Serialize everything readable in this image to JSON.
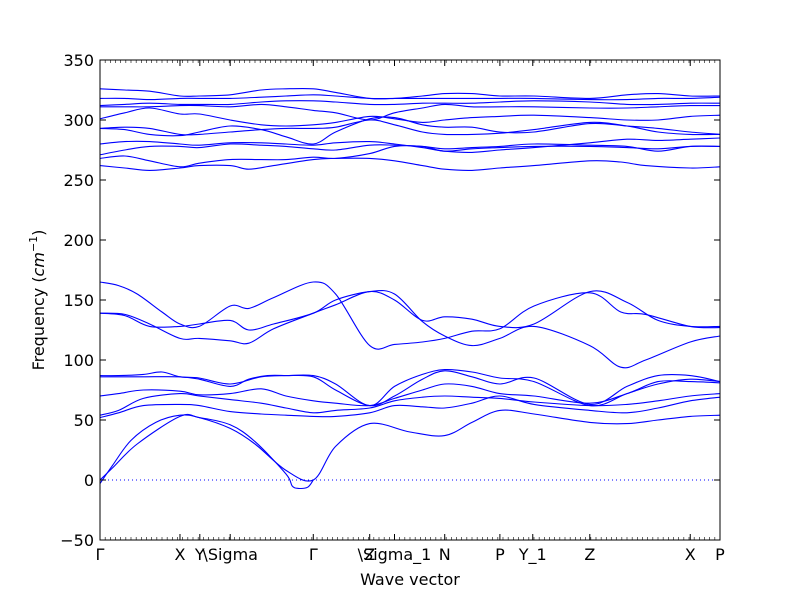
{
  "chart_data": {
    "type": "line",
    "title": "",
    "xlabel": "Wave vector",
    "ylabel": "Frequency",
    "ylabel_unit": "cm",
    "ylabel_unit_power": "−1",
    "ylim": [
      -50,
      350
    ],
    "yticks": [
      -50,
      0,
      50,
      100,
      150,
      200,
      250,
      300,
      350
    ],
    "xlim": [
      0,
      1
    ],
    "high_symmetry_points": [
      {
        "label": "Γ",
        "x": 0.0
      },
      {
        "label": "X",
        "x": 0.129
      },
      {
        "label": "Y",
        "x": 0.161
      },
      {
        "label": "\\Sigma",
        "x": 0.21
      },
      {
        "label": "Γ",
        "x": 0.344
      },
      {
        "label": "Z",
        "x": 0.435
      },
      {
        "label": "\\Sigma_1",
        "x": 0.475
      },
      {
        "label": "N",
        "x": 0.556
      },
      {
        "label": "P",
        "x": 0.645
      },
      {
        "label": "Y_1",
        "x": 0.698
      },
      {
        "label": "Z",
        "x": 0.79
      },
      {
        "label": "X",
        "x": 0.952
      },
      {
        "label": "P",
        "x": 1.0
      }
    ],
    "zero_line": {
      "y": 0,
      "style": "dotted"
    },
    "series_color": "#0000ff",
    "series": [
      {
        "x": [
          0.0,
          0.02,
          0.05,
          0.09,
          0.129,
          0.16,
          0.21,
          0.25,
          0.3,
          0.344,
          0.38,
          0.435,
          0.5,
          0.556,
          0.6,
          0.645,
          0.7,
          0.79,
          0.85,
          0.9,
          0.952,
          1.0
        ],
        "y": [
          -3,
          12,
          33,
          48,
          54,
          52,
          43,
          30,
          8,
          0,
          28,
          47,
          40,
          37,
          48,
          58,
          55,
          48,
          47,
          50,
          53,
          54
        ]
      },
      {
        "x": [
          0.0,
          0.02,
          0.06,
          0.129,
          0.16,
          0.21,
          0.25,
          0.3,
          0.31,
          0.32,
          0.335,
          0.344
        ],
        "y": [
          0,
          10,
          30,
          53,
          52,
          46,
          32,
          5,
          -5,
          -7,
          -6,
          0
        ]
      },
      {
        "x": [
          0.0,
          0.03,
          0.07,
          0.129,
          0.16,
          0.21,
          0.26,
          0.3,
          0.344,
          0.38,
          0.435,
          0.475,
          0.52,
          0.556,
          0.6,
          0.645,
          0.7,
          0.79,
          0.85,
          0.9,
          0.952,
          1.0
        ],
        "y": [
          52,
          56,
          62,
          63,
          62,
          57,
          55,
          54,
          53,
          53,
          56,
          62,
          61,
          60,
          64,
          70,
          63,
          58,
          56,
          60,
          66,
          69
        ]
      },
      {
        "x": [
          0.0,
          0.03,
          0.07,
          0.129,
          0.16,
          0.21,
          0.26,
          0.3,
          0.344,
          0.38,
          0.435,
          0.475,
          0.52,
          0.556,
          0.6,
          0.645,
          0.7,
          0.79,
          0.85,
          0.9,
          0.952,
          1.0
        ],
        "y": [
          54,
          58,
          68,
          72,
          70,
          67,
          64,
          60,
          56,
          58,
          60,
          66,
          69,
          70,
          69,
          68,
          65,
          62,
          63,
          66,
          70,
          72
        ]
      },
      {
        "x": [
          0.0,
          0.03,
          0.07,
          0.129,
          0.16,
          0.21,
          0.26,
          0.3,
          0.344,
          0.38,
          0.435,
          0.475,
          0.52,
          0.556,
          0.6,
          0.645,
          0.7,
          0.79,
          0.85,
          0.9,
          0.952,
          1.0
        ],
        "y": [
          70,
          72,
          75,
          74,
          71,
          72,
          76,
          70,
          66,
          64,
          62,
          68,
          75,
          80,
          78,
          72,
          70,
          64,
          72,
          82,
          82,
          81
        ]
      },
      {
        "x": [
          0.0,
          0.03,
          0.07,
          0.129,
          0.16,
          0.21,
          0.24,
          0.27,
          0.3,
          0.344,
          0.38,
          0.435,
          0.475,
          0.52,
          0.556,
          0.6,
          0.645,
          0.7,
          0.79,
          0.85,
          0.9,
          0.952,
          1.0
        ],
        "y": [
          86,
          86,
          86,
          86,
          84,
          78,
          84,
          87,
          87,
          86,
          75,
          62,
          70,
          84,
          91,
          86,
          80,
          85,
          63,
          78,
          87,
          87,
          82
        ]
      },
      {
        "x": [
          0.0,
          0.03,
          0.07,
          0.1,
          0.129,
          0.16,
          0.21,
          0.26,
          0.3,
          0.344,
          0.38,
          0.435,
          0.475,
          0.52,
          0.556,
          0.6,
          0.645,
          0.7,
          0.79,
          0.85,
          0.9,
          0.952,
          1.0
        ],
        "y": [
          87,
          87,
          88,
          90,
          86,
          85,
          80,
          86,
          87,
          87,
          80,
          62,
          78,
          88,
          92,
          90,
          85,
          82,
          62,
          72,
          80,
          84,
          82
        ]
      },
      {
        "x": [
          0.0,
          0.04,
          0.08,
          0.129,
          0.16,
          0.21,
          0.24,
          0.28,
          0.344,
          0.38,
          0.435,
          0.475,
          0.52,
          0.556,
          0.6,
          0.645,
          0.7,
          0.79,
          0.85,
          0.9,
          0.952,
          1.0
        ],
        "y": [
          139,
          138,
          130,
          118,
          118,
          116,
          114,
          126,
          139,
          146,
          157,
          150,
          133,
          136,
          134,
          128,
          130,
          157,
          148,
          133,
          128,
          128
        ]
      },
      {
        "x": [
          0.0,
          0.03,
          0.06,
          0.1,
          0.129,
          0.16,
          0.21,
          0.24,
          0.28,
          0.344,
          0.38,
          0.435,
          0.475,
          0.52,
          0.556,
          0.6,
          0.645,
          0.7,
          0.79,
          0.84,
          0.88,
          0.952,
          1.0
        ],
        "y": [
          165,
          162,
          155,
          140,
          130,
          128,
          145,
          143,
          152,
          165,
          155,
          112,
          113,
          115,
          118,
          124,
          126,
          145,
          156,
          140,
          138,
          128,
          127
        ]
      },
      {
        "x": [
          0.0,
          0.04,
          0.08,
          0.129,
          0.16,
          0.21,
          0.24,
          0.28,
          0.344,
          0.38,
          0.435,
          0.475,
          0.52,
          0.556,
          0.6,
          0.645,
          0.7,
          0.79,
          0.84,
          0.88,
          0.952,
          1.0
        ],
        "y": [
          139,
          137,
          128,
          128,
          130,
          133,
          125,
          130,
          139,
          150,
          157,
          155,
          132,
          120,
          112,
          118,
          128,
          112,
          94,
          100,
          115,
          120
        ]
      },
      {
        "x": [
          0.0,
          0.04,
          0.08,
          0.129,
          0.16,
          0.21,
          0.24,
          0.28,
          0.344,
          0.38,
          0.435,
          0.475,
          0.52,
          0.556,
          0.6,
          0.645,
          0.7,
          0.79,
          0.84,
          0.88,
          0.952,
          1.0
        ],
        "y": [
          262,
          260,
          258,
          260,
          262,
          262,
          259,
          262,
          267,
          268,
          268,
          266,
          262,
          259,
          258,
          260,
          262,
          266,
          265,
          262,
          260,
          261
        ]
      },
      {
        "x": [
          0.0,
          0.04,
          0.08,
          0.129,
          0.16,
          0.21,
          0.26,
          0.3,
          0.344,
          0.38,
          0.435,
          0.475,
          0.52,
          0.556,
          0.6,
          0.645,
          0.7,
          0.79,
          0.85,
          0.9,
          0.952,
          1.0
        ],
        "y": [
          268,
          270,
          266,
          261,
          264,
          267,
          267,
          267,
          269,
          268,
          272,
          278,
          278,
          274,
          276,
          277,
          278,
          278,
          277,
          276,
          278,
          278
        ]
      },
      {
        "x": [
          0.0,
          0.04,
          0.08,
          0.129,
          0.16,
          0.21,
          0.26,
          0.3,
          0.344,
          0.38,
          0.435,
          0.475,
          0.52,
          0.556,
          0.6,
          0.645,
          0.7,
          0.79,
          0.85,
          0.9,
          0.952,
          1.0
        ],
        "y": [
          271,
          275,
          278,
          278,
          277,
          280,
          279,
          278,
          276,
          275,
          279,
          279,
          278,
          276,
          277,
          278,
          280,
          279,
          278,
          274,
          278,
          278
        ]
      },
      {
        "x": [
          0.0,
          0.04,
          0.08,
          0.129,
          0.16,
          0.21,
          0.26,
          0.3,
          0.344,
          0.38,
          0.435,
          0.475,
          0.52,
          0.556,
          0.6,
          0.645,
          0.7,
          0.79,
          0.85,
          0.9,
          0.952,
          1.0
        ],
        "y": [
          280,
          282,
          282,
          280,
          279,
          281,
          281,
          280,
          279,
          281,
          282,
          280,
          277,
          274,
          273,
          275,
          277,
          281,
          284,
          283,
          284,
          285
        ]
      },
      {
        "x": [
          0.0,
          0.04,
          0.08,
          0.129,
          0.16,
          0.21,
          0.26,
          0.3,
          0.344,
          0.38,
          0.435,
          0.475,
          0.52,
          0.556,
          0.6,
          0.645,
          0.7,
          0.79,
          0.85,
          0.9,
          0.952,
          1.0
        ],
        "y": [
          293,
          292,
          288,
          287,
          290,
          295,
          292,
          286,
          280,
          290,
          301,
          302,
          296,
          294,
          294,
          290,
          290,
          297,
          295,
          293,
          290,
          288
        ]
      },
      {
        "x": [
          0.0,
          0.04,
          0.08,
          0.129,
          0.16,
          0.21,
          0.26,
          0.3,
          0.344,
          0.38,
          0.435,
          0.475,
          0.52,
          0.556,
          0.6,
          0.645,
          0.7,
          0.79,
          0.85,
          0.9,
          0.952,
          1.0
        ],
        "y": [
          293,
          294,
          293,
          288,
          288,
          290,
          292,
          293,
          293,
          294,
          300,
          296,
          290,
          288,
          288,
          289,
          292,
          298,
          295,
          290,
          288,
          288
        ]
      },
      {
        "x": [
          0.0,
          0.04,
          0.08,
          0.129,
          0.16,
          0.21,
          0.26,
          0.3,
          0.344,
          0.38,
          0.435,
          0.475,
          0.52,
          0.556,
          0.6,
          0.645,
          0.7,
          0.79,
          0.85,
          0.9,
          0.952,
          1.0
        ],
        "y": [
          301,
          306,
          310,
          305,
          305,
          300,
          296,
          295,
          296,
          298,
          303,
          301,
          298,
          300,
          302,
          303,
          304,
          302,
          300,
          300,
          303,
          304
        ]
      },
      {
        "x": [
          0.0,
          0.04,
          0.08,
          0.129,
          0.16,
          0.21,
          0.26,
          0.3,
          0.344,
          0.38,
          0.435,
          0.475,
          0.52,
          0.556,
          0.6,
          0.645,
          0.7,
          0.79,
          0.85,
          0.9,
          0.952,
          1.0
        ],
        "y": [
          311,
          311,
          311,
          312,
          312,
          311,
          313,
          311,
          308,
          306,
          300,
          306,
          310,
          313,
          311,
          311,
          311,
          310,
          310,
          311,
          312,
          312
        ]
      },
      {
        "x": [
          0.0,
          0.04,
          0.08,
          0.129,
          0.16,
          0.21,
          0.26,
          0.3,
          0.344,
          0.38,
          0.435,
          0.475,
          0.52,
          0.556,
          0.6,
          0.645,
          0.7,
          0.79,
          0.85,
          0.9,
          0.952,
          1.0
        ],
        "y": [
          312,
          313,
          314,
          313,
          313,
          313,
          315,
          316,
          316,
          315,
          313,
          313,
          314,
          314,
          314,
          315,
          316,
          315,
          313,
          313,
          314,
          314
        ]
      },
      {
        "x": [
          0.0,
          0.04,
          0.08,
          0.129,
          0.16,
          0.21,
          0.26,
          0.3,
          0.344,
          0.38,
          0.435,
          0.475,
          0.52,
          0.556,
          0.6,
          0.645,
          0.7,
          0.79,
          0.85,
          0.9,
          0.952,
          1.0
        ],
        "y": [
          318,
          318,
          317,
          318,
          318,
          318,
          319,
          320,
          321,
          320,
          318,
          318,
          318,
          318,
          318,
          318,
          318,
          317,
          317,
          318,
          318,
          319
        ]
      },
      {
        "x": [
          0.0,
          0.04,
          0.08,
          0.129,
          0.16,
          0.21,
          0.26,
          0.3,
          0.344,
          0.38,
          0.435,
          0.475,
          0.52,
          0.556,
          0.6,
          0.645,
          0.7,
          0.79,
          0.85,
          0.9,
          0.952,
          1.0
        ],
        "y": [
          326,
          325,
          324,
          320,
          320,
          321,
          325,
          326,
          326,
          323,
          318,
          318,
          320,
          322,
          322,
          320,
          320,
          318,
          321,
          322,
          320,
          320
        ]
      }
    ]
  }
}
